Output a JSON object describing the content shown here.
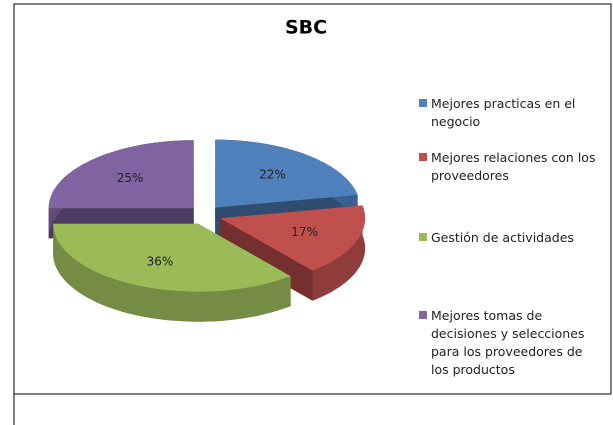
{
  "chart_data": {
    "type": "pie",
    "title": "SBC",
    "categories": [
      "Mejores practicas en el negocio",
      "Mejores relaciones con los proveedores",
      "Gestión de actividades",
      "Mejores tomas de decisiones y selecciones para los proveedores de los productos"
    ],
    "values": [
      22,
      17,
      36,
      25
    ],
    "value_labels": [
      "22%",
      "17%",
      "36%",
      "25%"
    ],
    "colors": [
      "#4f81bd",
      "#c0504d",
      "#9bbb59",
      "#8064a2"
    ],
    "legend": "right"
  }
}
